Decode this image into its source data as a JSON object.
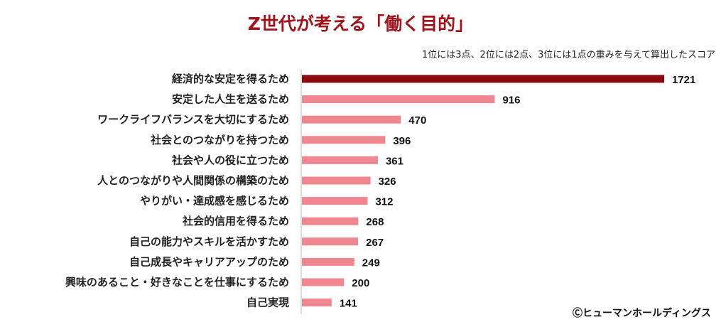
{
  "chart_data": {
    "type": "bar",
    "orientation": "horizontal",
    "title": "Z世代が考える「働く目的」",
    "subtitle": "1位には3点、2位には2点、3位には1点の重みを与えて算出したスコア",
    "categories": [
      "経済的な安定を得るため",
      "安定した人生を送るため",
      "ワークライフバランスを大切にするため",
      "社会とのつながりを持つため",
      "社会や人の役に立つため",
      "人とのつながりや人間関係の構築のため",
      "やりがい・達成感を感じるため",
      "社会的信用を得るため",
      "自己の能力やスキルを活かすため",
      "自己成長やキャリアアップのため",
      "興味のあること・好きなことを仕事にするため",
      "自己実現"
    ],
    "values": [
      1721,
      916,
      470,
      396,
      361,
      326,
      312,
      268,
      267,
      249,
      200,
      141
    ],
    "xlim": [
      0,
      1721
    ],
    "grid": false,
    "data_labels": true,
    "colors": {
      "highlight": "#8b0a10",
      "bar": "#f0868f",
      "title": "#a0141e"
    }
  },
  "credit": "Ⓒヒューマンホールディングス"
}
